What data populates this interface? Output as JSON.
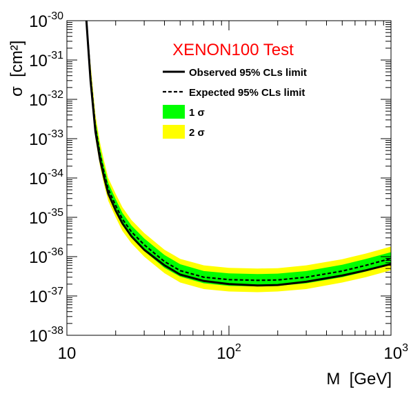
{
  "chart_data": {
    "type": "line",
    "title": "XENON100 Test",
    "xlabel": "M  [GeV]",
    "ylabel": "σ  [cm²]",
    "xscale": "log",
    "yscale": "log",
    "xlim": [
      10,
      1000
    ],
    "ylim": [
      1e-38,
      1e-30
    ],
    "grid": false,
    "legend_placement": "top-right",
    "x_ticks": [
      {
        "base": "10",
        "exp": ""
      },
      {
        "base": "10",
        "exp": "2"
      },
      {
        "base": "10",
        "exp": "3"
      }
    ],
    "y_ticks": [
      {
        "base": "10",
        "exp": "-38"
      },
      {
        "base": "10",
        "exp": "-37"
      },
      {
        "base": "10",
        "exp": "-36"
      },
      {
        "base": "10",
        "exp": "-35"
      },
      {
        "base": "10",
        "exp": "-34"
      },
      {
        "base": "10",
        "exp": "-33"
      },
      {
        "base": "10",
        "exp": "-32"
      },
      {
        "base": "10",
        "exp": "-31"
      },
      {
        "base": "10",
        "exp": "-30"
      }
    ],
    "x": [
      13.2,
      14,
      15,
      16,
      17,
      18,
      20,
      22,
      25,
      30,
      40,
      50,
      70,
      100,
      150,
      200,
      300,
      500,
      700,
      1000
    ],
    "series": [
      {
        "name": "Observed 95% CLs limit",
        "style": "solid",
        "color": "#000000",
        "values": [
          1e-30,
          3e-32,
          1.5e-33,
          3e-34,
          1e-34,
          4e-35,
          1.5e-35,
          7e-36,
          3.3e-36,
          1.5e-36,
          6e-37,
          3.5e-37,
          2.4e-37,
          2e-37,
          1.85e-37,
          1.9e-37,
          2.3e-37,
          3.3e-37,
          4.5e-37,
          6.5e-37
        ]
      },
      {
        "name": "Expected 95% CLs limit",
        "style": "dashed",
        "color": "#000000",
        "values": [
          1e-30,
          4e-32,
          2e-33,
          4e-34,
          1.3e-34,
          5.2e-35,
          2e-35,
          9e-36,
          4.3e-36,
          2e-36,
          7.5e-37,
          4.4e-37,
          3e-37,
          2.6e-37,
          2.5e-37,
          2.55e-37,
          3e-37,
          4.3e-37,
          6e-37,
          9e-37
        ]
      }
    ],
    "bands": [
      {
        "name": "1 σ",
        "color": "#00ff00",
        "lower": [
          1e-30,
          2.8e-32,
          1.4e-33,
          2.8e-34,
          9.2e-35,
          3.7e-35,
          1.4e-35,
          6.3e-36,
          3e-36,
          1.4e-36,
          5.2e-37,
          3.1e-37,
          2.1e-37,
          1.8e-37,
          1.75e-37,
          1.8e-37,
          2.1e-37,
          3e-37,
          4.2e-37,
          6.3e-37
        ],
        "upper": [
          1e-30,
          5.8e-32,
          2.9e-33,
          5.8e-34,
          1.9e-34,
          7.5e-35,
          2.9e-35,
          1.3e-35,
          6.2e-36,
          2.9e-36,
          1.1e-36,
          6.4e-37,
          4.3e-37,
          3.75e-37,
          3.6e-37,
          3.7e-37,
          4.3e-37,
          6.2e-37,
          8.7e-37,
          1.3e-36
        ]
      },
      {
        "name": "2 σ",
        "color": "#ffff00",
        "lower": [
          1e-30,
          2e-32,
          1e-33,
          2e-34,
          6.5e-35,
          2.6e-35,
          1e-35,
          4.5e-36,
          2.2e-36,
          1e-36,
          3.8e-37,
          2.2e-37,
          1.5e-37,
          1.3e-37,
          1.25e-37,
          1.3e-37,
          1.5e-37,
          2.2e-37,
          3e-37,
          4.5e-37
        ],
        "upper": [
          1e-30,
          8e-32,
          4e-33,
          8e-34,
          2.6e-34,
          1e-34,
          4e-35,
          1.8e-35,
          8.6e-36,
          4e-36,
          1.5e-36,
          8.8e-37,
          6e-37,
          5.2e-37,
          5e-37,
          5.1e-37,
          6e-37,
          8.6e-37,
          1.2e-36,
          1.8e-36
        ]
      }
    ]
  }
}
